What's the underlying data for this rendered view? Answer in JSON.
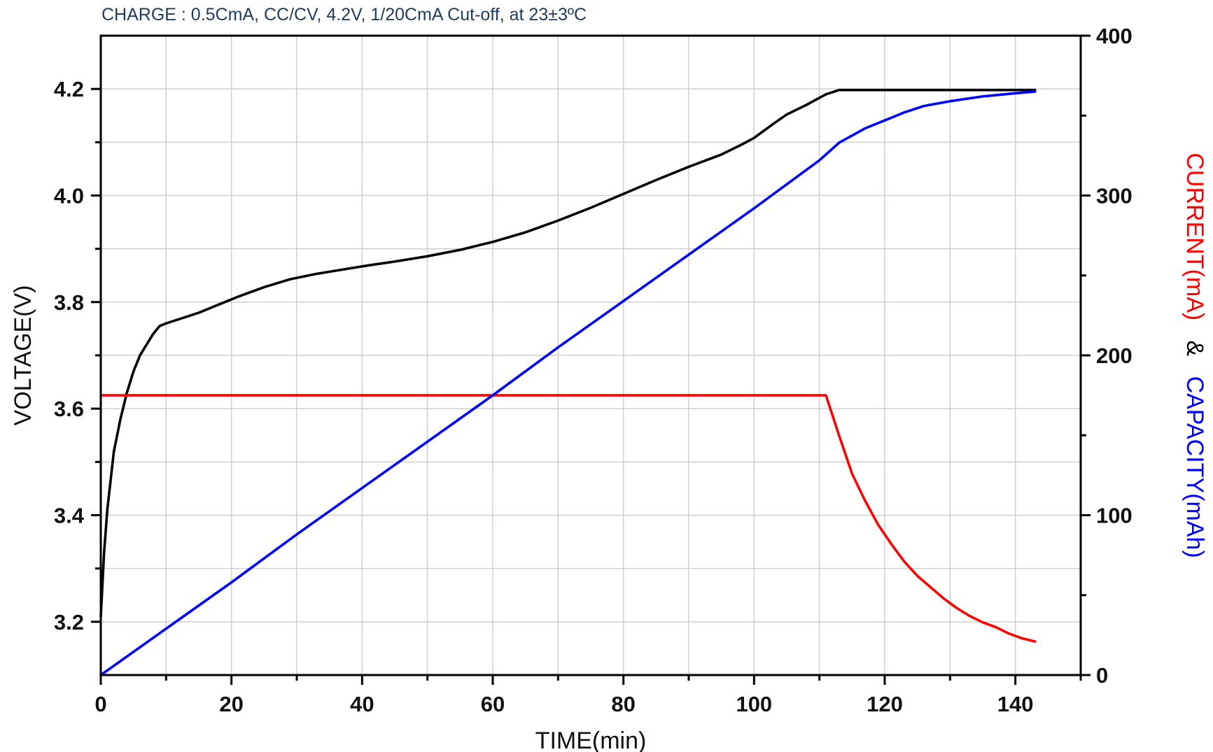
{
  "chart_data": {
    "type": "line",
    "subtitle": "CHARGE : 0.5CmA, CC/CV, 4.2V, 1/20CmA Cut-off, at 23±3ºC",
    "xlabel": "TIME(min)",
    "ylabel_left": "VOLTAGE(V)",
    "ylabel_right_parts": [
      "CURRENT(mA)",
      "&",
      "CAPACITY(mAh)"
    ],
    "xlim": [
      0,
      150
    ],
    "ylim_left": [
      3.1,
      4.3
    ],
    "ylim_right": [
      0,
      400
    ],
    "xticks": [
      0,
      20,
      40,
      60,
      80,
      100,
      120,
      140
    ],
    "xtick_labels": [
      "0",
      "20",
      "40",
      "60",
      "80",
      "100",
      "120",
      "140"
    ],
    "yticks_left": [
      3.2,
      3.4,
      3.6,
      3.8,
      4.0,
      4.2
    ],
    "ytick_labels_left": [
      "3.2",
      "3.4",
      "3.6",
      "3.8",
      "4.0",
      "4.2"
    ],
    "yticks_right": [
      0,
      100,
      200,
      300,
      400
    ],
    "ytick_labels_right": [
      "0",
      "100",
      "200",
      "300",
      "400"
    ],
    "grid": true,
    "colors": {
      "voltage": "#000000",
      "current": "#ff0000",
      "capacity": "#0000ff",
      "ylabel_right": [
        "#ff0000",
        "#000000",
        "#0000ff"
      ]
    },
    "series": [
      {
        "axis": "left",
        "color": "#000000",
        "x": [
          0,
          0.5,
          1,
          2,
          3,
          4,
          5,
          6,
          7,
          8,
          9,
          10,
          12,
          15,
          18,
          21,
          25,
          29,
          33,
          37,
          41,
          45,
          50,
          55,
          60,
          65,
          70,
          75,
          80,
          85,
          90,
          95,
          98,
          100,
          103,
          105,
          108,
          111,
          113,
          143
        ],
        "y": [
          3.21,
          3.33,
          3.41,
          3.52,
          3.58,
          3.63,
          3.67,
          3.7,
          3.72,
          3.74,
          3.755,
          3.76,
          3.768,
          3.78,
          3.795,
          3.81,
          3.828,
          3.843,
          3.853,
          3.861,
          3.869,
          3.876,
          3.886,
          3.898,
          3.913,
          3.931,
          3.953,
          3.977,
          4.003,
          4.029,
          4.054,
          4.077,
          4.095,
          4.108,
          4.135,
          4.152,
          4.17,
          4.19,
          4.198,
          4.198
        ]
      },
      {
        "axis": "right",
        "color": "#ff0000",
        "x": [
          0,
          111,
          113,
          115,
          117,
          119,
          121,
          123,
          125,
          127,
          129,
          131,
          133,
          135,
          137,
          139,
          141,
          143
        ],
        "y": [
          175,
          175,
          150,
          126,
          109,
          94,
          82,
          71,
          62,
          55,
          48,
          42,
          37,
          33,
          30,
          26,
          23,
          21
        ]
      },
      {
        "axis": "right",
        "color": "#0000ff",
        "x": [
          0,
          10,
          20,
          30,
          40,
          50,
          60,
          70,
          80,
          90,
          100,
          110,
          113,
          117,
          120,
          123,
          126,
          130,
          135,
          140,
          143
        ],
        "y": [
          0,
          29,
          58,
          88,
          117,
          146,
          175,
          205,
          234,
          263,
          292,
          322,
          333,
          342,
          347,
          352,
          356,
          359,
          362,
          364,
          365
        ]
      }
    ]
  }
}
